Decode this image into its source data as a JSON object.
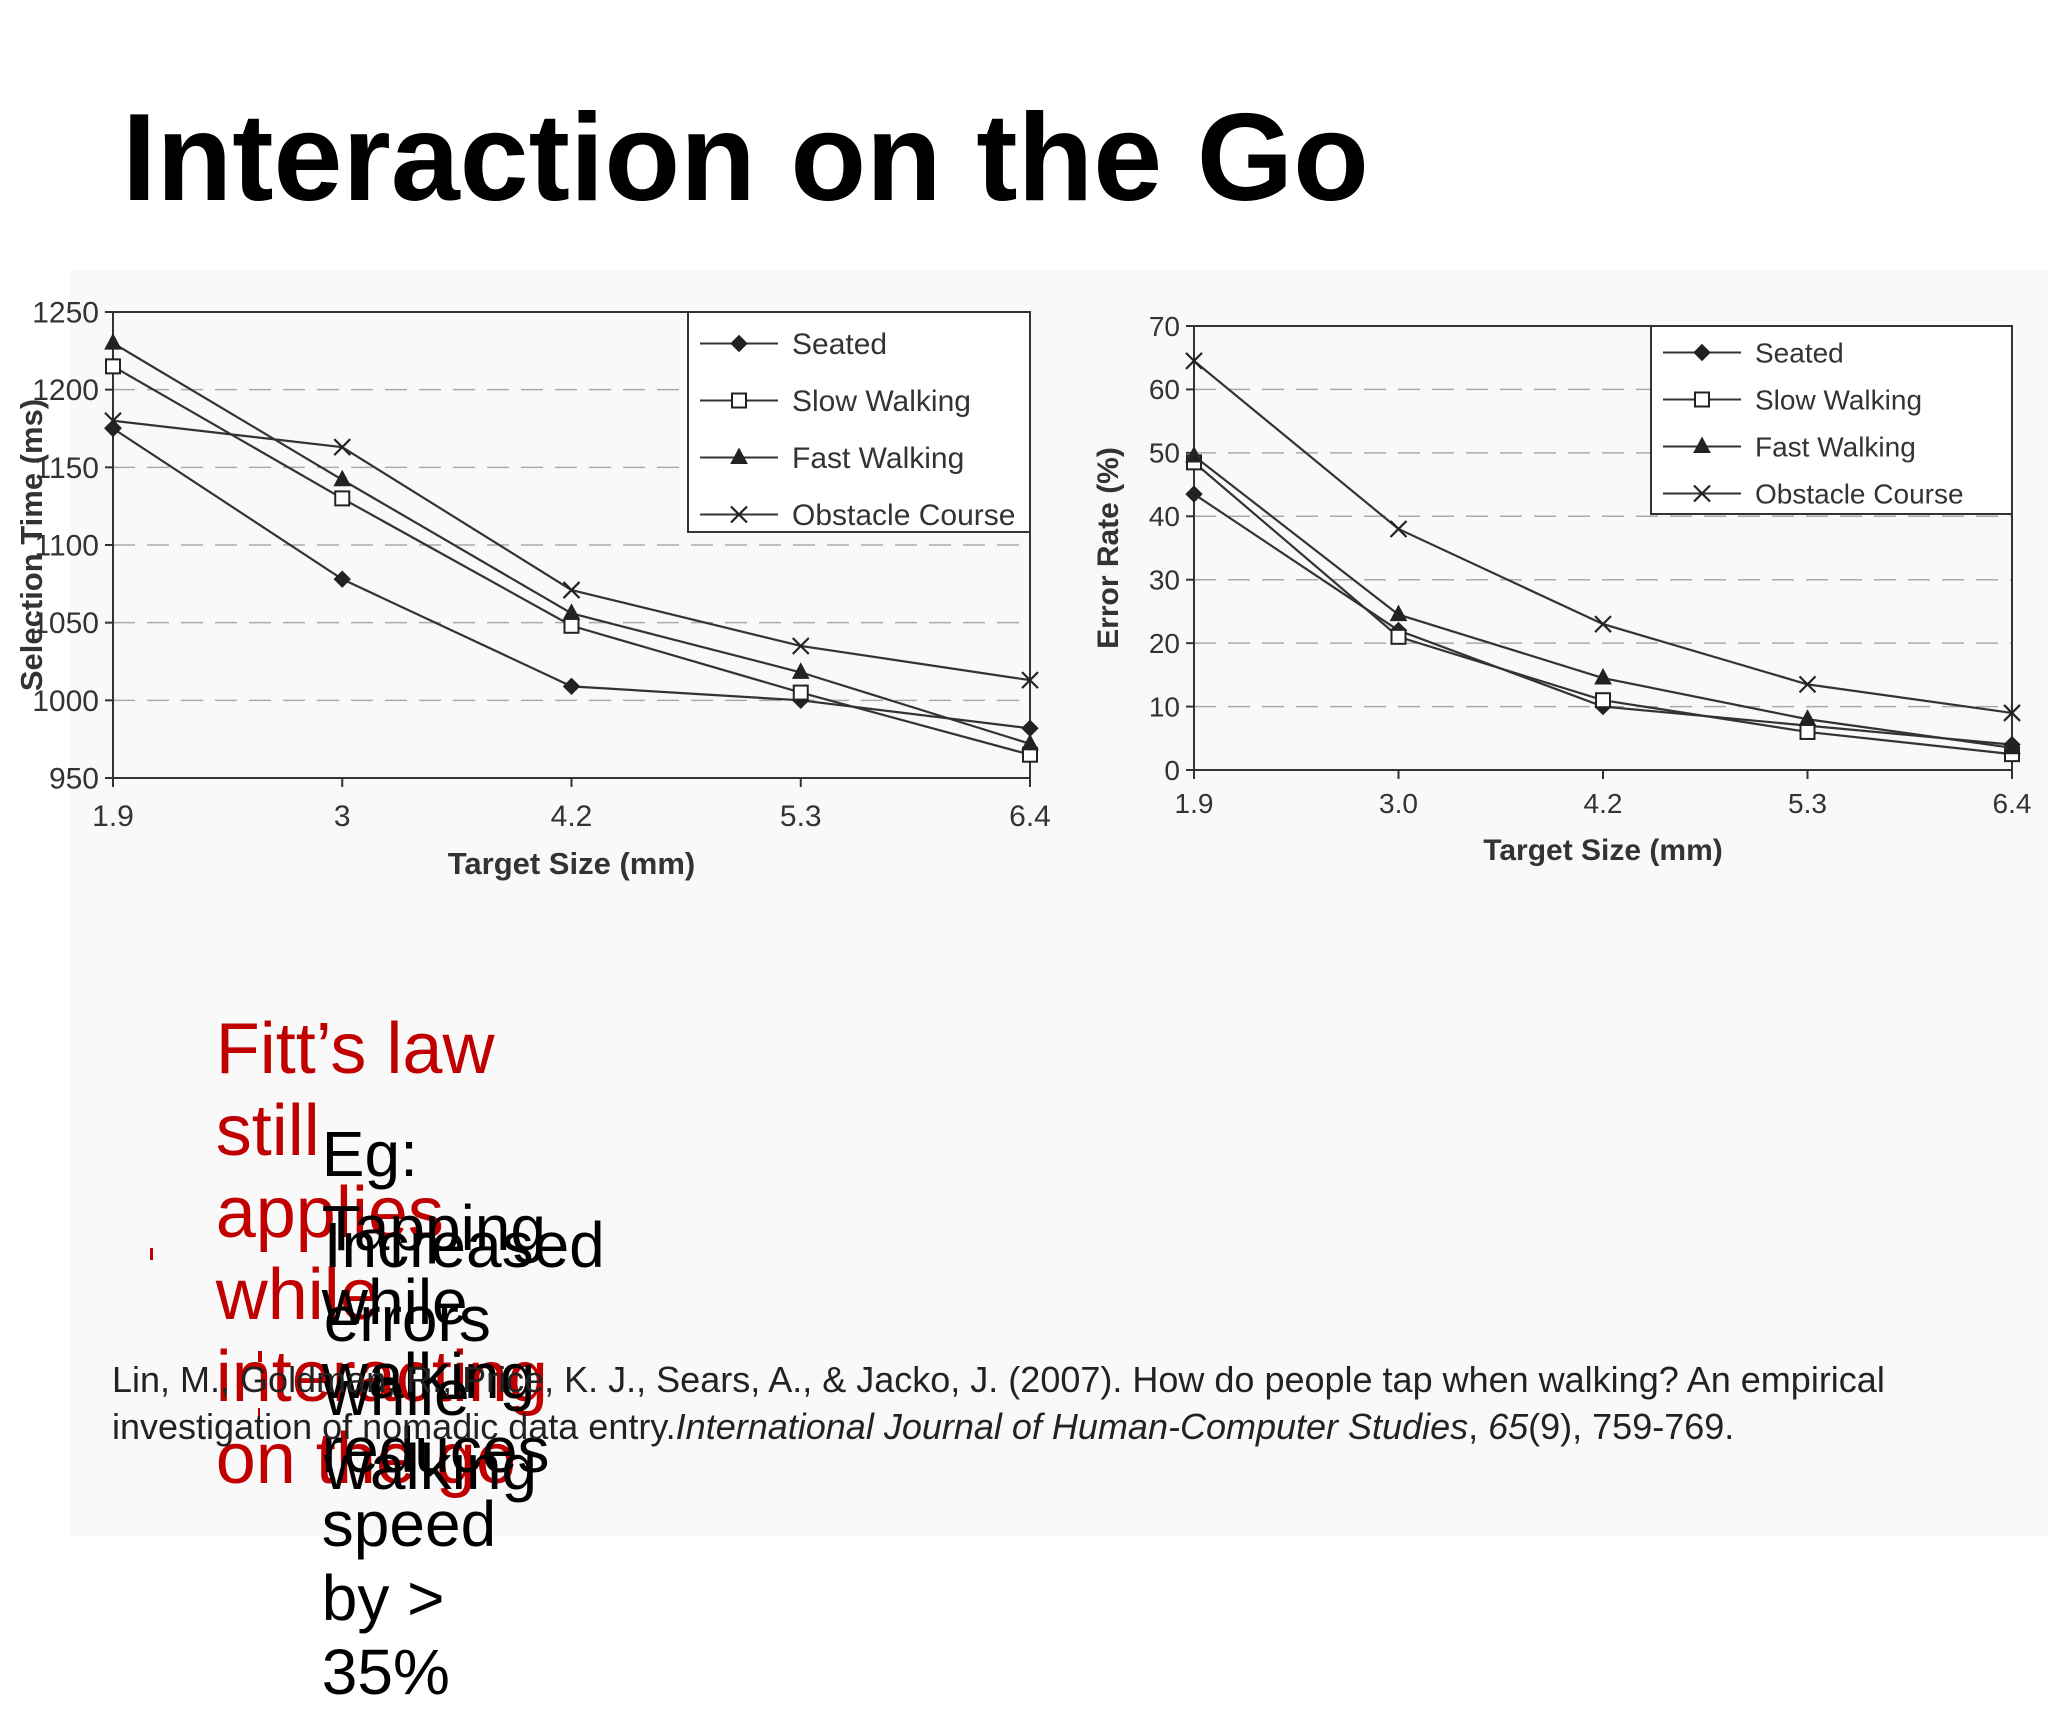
{
  "slide": {
    "title": "Interaction on the Go",
    "bullets": {
      "main": "Fitt’s law still applies while interacting on the go",
      "sub1": "Eg: Tapping while walking reduces speed by > 35%",
      "sub2": "Increased errors while walking"
    },
    "citation": {
      "part1": "Lin, M., Goldman, R., Price, K. J., Sears, A., & Jacko, J. (2007). How do people tap when walking? An empirical investigation of nomadic data entry.",
      "journal": "International Journal of Human-Computer Studies",
      "sep": ", ",
      "volume": "65",
      "rest": "(9), 759-769."
    },
    "colors": {
      "accent": "#c00000",
      "text": "#000000",
      "plot_line": "#333333",
      "grid": "#aaaaaa"
    }
  },
  "chart_data": [
    {
      "type": "line",
      "xlabel": "Target Size (mm)",
      "ylabel": "Selection Time (ms)",
      "categories": [
        "1.9",
        "3",
        "4.2",
        "5.3",
        "6.4"
      ],
      "yticks": [
        "950",
        "1000",
        "1050",
        "1100",
        "1150",
        "1200",
        "1250"
      ],
      "ylim": [
        950,
        1250
      ],
      "grid": true,
      "legend_position": "top-right",
      "series": [
        {
          "name": "Seated",
          "marker": "diamond",
          "values": [
            1175,
            1078,
            1009,
            1000,
            982
          ]
        },
        {
          "name": "Slow Walking",
          "marker": "square",
          "values": [
            1215,
            1130,
            1048,
            1005,
            965
          ]
        },
        {
          "name": "Fast Walking",
          "marker": "triangle",
          "values": [
            1230,
            1142,
            1056,
            1018,
            972
          ]
        },
        {
          "name": "Obstacle Course",
          "marker": "x",
          "values": [
            1180,
            1163,
            1071,
            1035,
            1013
          ]
        }
      ]
    },
    {
      "type": "line",
      "xlabel": "Target Size (mm)",
      "ylabel": "Error Rate (%)",
      "categories": [
        "1.9",
        "3.0",
        "4.2",
        "5.3",
        "6.4"
      ],
      "yticks": [
        "0",
        "10",
        "20",
        "30",
        "40",
        "50",
        "60",
        "70"
      ],
      "ylim": [
        0,
        70
      ],
      "grid": true,
      "legend_position": "top-right",
      "series": [
        {
          "name": "Seated",
          "marker": "diamond",
          "values": [
            43.5,
            22,
            10,
            7,
            4
          ]
        },
        {
          "name": "Slow Walking",
          "marker": "square",
          "values": [
            48.5,
            21,
            11,
            6,
            2.5
          ]
        },
        {
          "name": "Fast Walking",
          "marker": "triangle",
          "values": [
            49.5,
            24.5,
            14.5,
            8,
            3.5
          ]
        },
        {
          "name": "Obstacle Course",
          "marker": "x",
          "values": [
            64.5,
            38,
            23,
            13.5,
            9
          ]
        }
      ]
    }
  ]
}
